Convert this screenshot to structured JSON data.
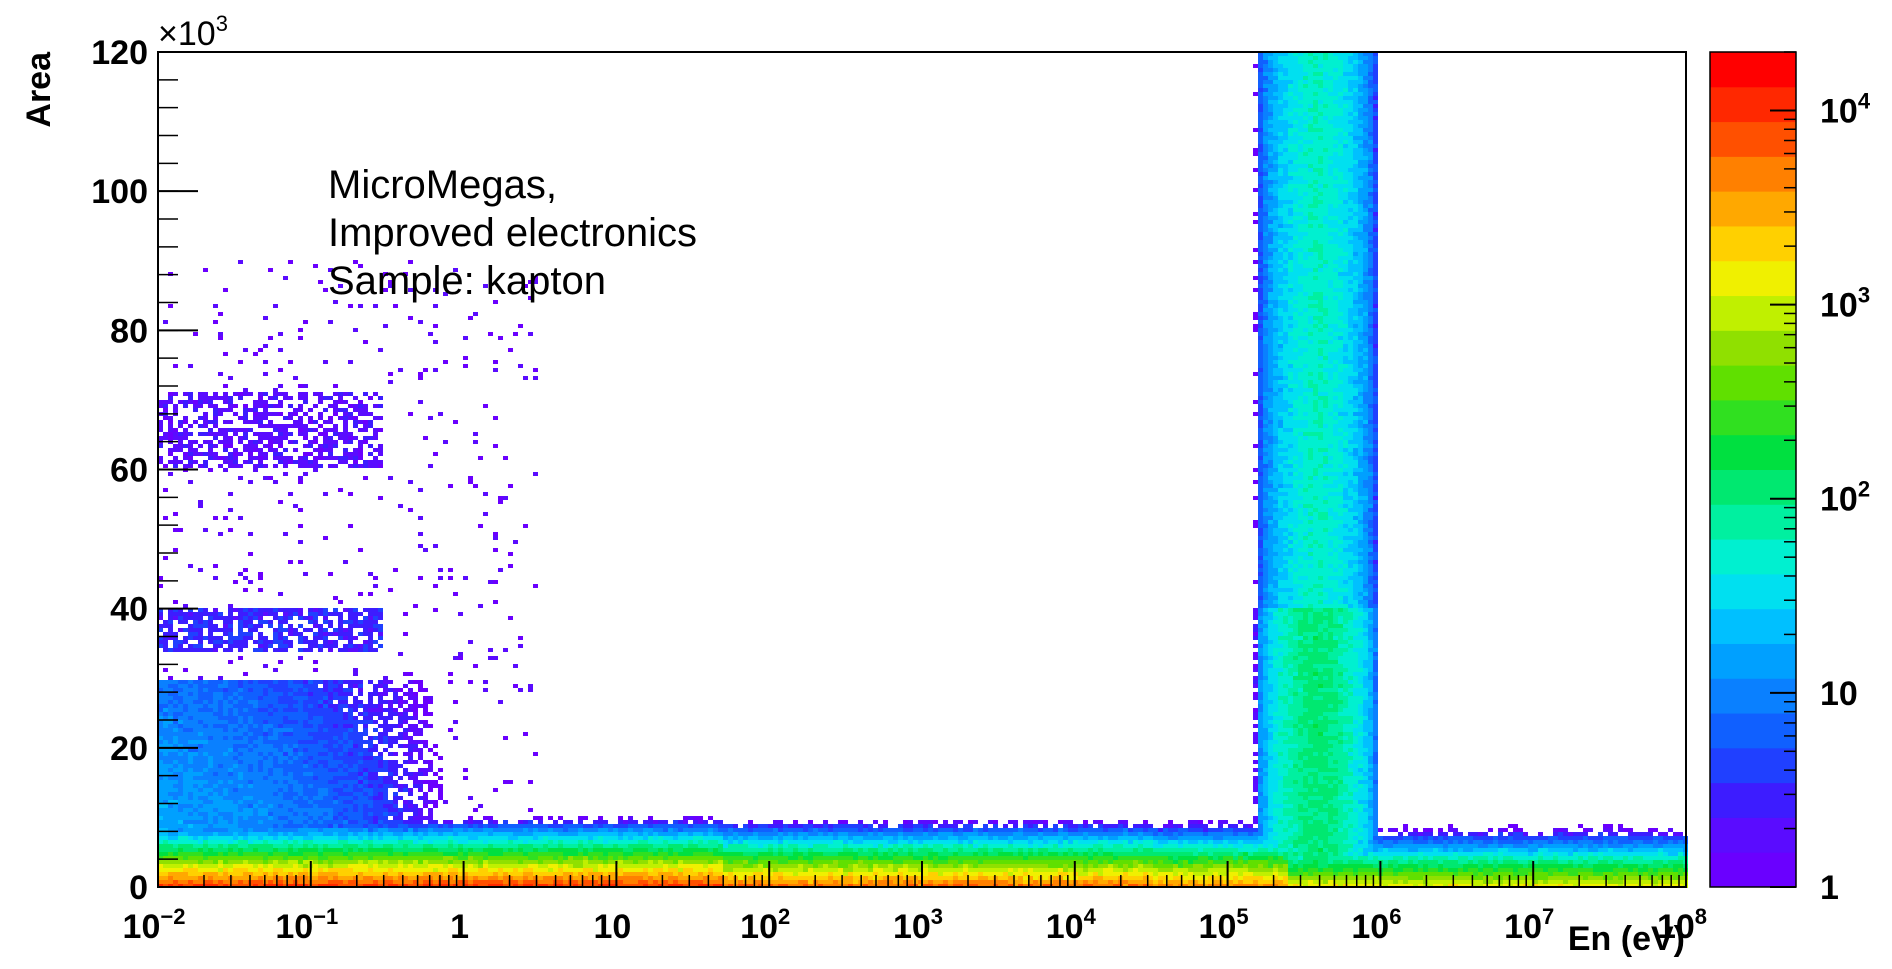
{
  "chart_data": {
    "type": "heatmap",
    "xlabel": "En (eV)",
    "ylabel": "Area",
    "x_scale": "log",
    "xlim": [
      0.01,
      100000000
    ],
    "ylim": [
      0,
      120000
    ],
    "y_multiplier_label": "×10",
    "y_multiplier_exp": "3",
    "x_ticks": [
      {
        "value": 0.01,
        "base": "10",
        "exp": "−2"
      },
      {
        "value": 0.1,
        "base": "10",
        "exp": "−1"
      },
      {
        "value": 1,
        "base": "1",
        "exp": ""
      },
      {
        "value": 10,
        "base": "10",
        "exp": ""
      },
      {
        "value": 100,
        "base": "10",
        "exp": "2"
      },
      {
        "value": 1000,
        "base": "10",
        "exp": "3"
      },
      {
        "value": 10000,
        "base": "10",
        "exp": "4"
      },
      {
        "value": 100000,
        "base": "10",
        "exp": "5"
      },
      {
        "value": 1000000,
        "base": "10",
        "exp": "6"
      },
      {
        "value": 10000000,
        "base": "10",
        "exp": "7"
      },
      {
        "value": 100000000,
        "base": "10",
        "exp": "8"
      }
    ],
    "y_ticks": [
      {
        "value": 0,
        "label": "0"
      },
      {
        "value": 20000,
        "label": "20"
      },
      {
        "value": 40000,
        "label": "40"
      },
      {
        "value": 60000,
        "label": "60"
      },
      {
        "value": 80000,
        "label": "80"
      },
      {
        "value": 100000,
        "label": "100"
      },
      {
        "value": 120000,
        "label": "120"
      }
    ],
    "z_scale": "log",
    "zlim": [
      1,
      20000
    ],
    "z_ticks": [
      {
        "value": 1,
        "base": "1",
        "exp": ""
      },
      {
        "value": 10,
        "base": "10",
        "exp": ""
      },
      {
        "value": 100,
        "base": "10",
        "exp": "2"
      },
      {
        "value": 1000,
        "base": "10",
        "exp": "3"
      },
      {
        "value": 10000,
        "base": "10",
        "exp": "4"
      }
    ],
    "palette": [
      "#6a00ff",
      "#5a0cff",
      "#3d1cff",
      "#2040ff",
      "#1060ff",
      "#0a80ff",
      "#00a0ff",
      "#00c0ff",
      "#00e0f0",
      "#00f0d0",
      "#00f0a0",
      "#00e870",
      "#00e040",
      "#30e020",
      "#60e000",
      "#90e000",
      "#c0f000",
      "#f0f000",
      "#ffd000",
      "#ffa800",
      "#ff8000",
      "#ff5000",
      "#ff2800",
      "#ff0000"
    ],
    "annotations": [
      "MicroMegas,",
      "Improved electronics",
      "Sample: kapton"
    ],
    "regions": [
      {
        "desc": "dense low-area band",
        "x_range": [
          0.01,
          100000000
        ],
        "y_range": [
          0,
          10000
        ],
        "peak_z": 10000
      },
      {
        "desc": "blob",
        "x_range": [
          0.01,
          1
        ],
        "y_range": [
          0,
          30000
        ],
        "peak_z": 20
      },
      {
        "desc": "bands",
        "x_range": [
          0.01,
          0.3
        ],
        "y_range": [
          34000,
          40000
        ],
        "peak_z": 3
      },
      {
        "desc": "bands",
        "x_range": [
          0.01,
          0.3
        ],
        "y_range": [
          60000,
          71000
        ],
        "peak_z": 2
      },
      {
        "desc": "vertical band",
        "x_range": [
          150000,
          1000000
        ],
        "y_range": [
          0,
          120000
        ],
        "peak_z": 100
      }
    ]
  }
}
